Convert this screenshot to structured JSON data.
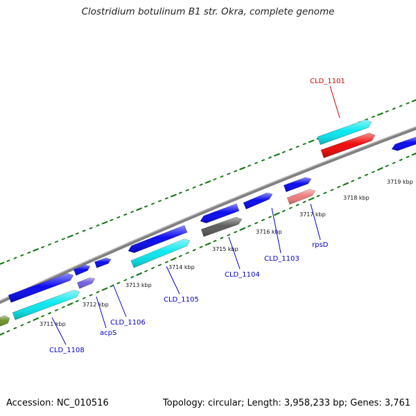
{
  "title": "Clostridium botulinum B1 str. Okra, complete genome",
  "footer": {
    "accession": "Accession: NC_010516",
    "stats": "Topology: circular; Length: 3,958,233 bp; Genes: 3,761"
  },
  "colors": {
    "backbone": "#808080",
    "tick_marks": "#1a7a1a",
    "label_blue": "#0000c0",
    "label_red": "#cc0000",
    "gene_blue": "#0000ee",
    "gene_cyan": "#00e6ee",
    "gene_red": "#ee0000",
    "gene_gray": "#555555",
    "gene_salmon": "#ee7777",
    "gene_purple": "#6e5ae0",
    "gene_olive": "#6b8e23"
  },
  "ticks": [
    "3711 kbp",
    "3712 kbp",
    "3713 kbp",
    "3714 kbp",
    "3715 kbp",
    "3716 kbp",
    "3717 kbp",
    "3718 kbp",
    "3719 kbp"
  ],
  "gene_labels": [
    "CLD_1101",
    "rpsD",
    "CLD_1103",
    "CLD_1104",
    "CLD_1105",
    "CLD_1106",
    "acpS",
    "CLD_1108"
  ]
}
